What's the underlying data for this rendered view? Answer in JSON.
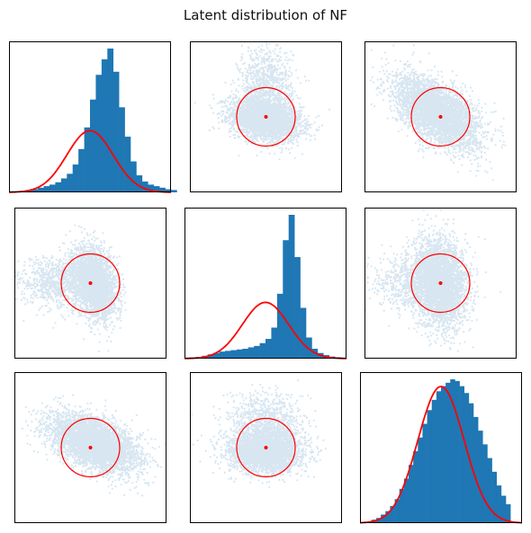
{
  "title": "Latent distribution of NF",
  "colors": {
    "hist": "#1f77b4",
    "scatter": "#1f77b4",
    "gaussian": "#ff0000",
    "frame": "#000000"
  },
  "chart_data": {
    "type": "pairplot",
    "grid": false,
    "dims": 3,
    "reference": "standard normal (mean 0, 1-sigma circle)",
    "diagonal": [
      {
        "row": 0,
        "col": 0,
        "type": "histogram",
        "bin_start": -3.5,
        "bin_width": 0.25,
        "density": [
          0.005,
          0.007,
          0.01,
          0.015,
          0.02,
          0.03,
          0.04,
          0.05,
          0.065,
          0.09,
          0.12,
          0.18,
          0.28,
          0.42,
          0.6,
          0.76,
          0.86,
          0.93,
          0.78,
          0.55,
          0.36,
          0.2,
          0.11,
          0.07,
          0.05,
          0.04,
          0.03,
          0.02,
          0.015
        ]
      },
      {
        "row": 1,
        "col": 1,
        "type": "histogram",
        "bin_start": -3.5,
        "bin_width": 0.25,
        "density": [
          0.004,
          0.008,
          0.012,
          0.02,
          0.03,
          0.04,
          0.05,
          0.055,
          0.06,
          0.065,
          0.07,
          0.08,
          0.09,
          0.11,
          0.14,
          0.22,
          0.46,
          0.84,
          1.02,
          0.72,
          0.36,
          0.15,
          0.07,
          0.04,
          0.025,
          0.015,
          0.01,
          0.006
        ]
      },
      {
        "row": 2,
        "col": 2,
        "type": "histogram",
        "bin_start": -3.0,
        "bin_width": 0.2,
        "density": [
          0.01,
          0.015,
          0.025,
          0.035,
          0.05,
          0.07,
          0.1,
          0.13,
          0.17,
          0.21,
          0.25,
          0.29,
          0.33,
          0.36,
          0.385,
          0.4,
          0.41,
          0.42,
          0.415,
          0.4,
          0.38,
          0.35,
          0.31,
          0.27,
          0.23,
          0.19,
          0.15,
          0.11,
          0.08,
          0.055
        ]
      }
    ],
    "offdiagonal": [
      {
        "row": 0,
        "col": 1,
        "n": 4200,
        "clusters": [
          {
            "w": 0.75,
            "mx": 0.0,
            "my": -0.1,
            "sx": 0.6,
            "sy": 0.35,
            "rho": -0.3
          },
          {
            "w": 0.25,
            "mx": 0.0,
            "my": 1.0,
            "sx": 0.45,
            "sy": 0.7,
            "rho": 0.0
          }
        ]
      },
      {
        "row": 0,
        "col": 2,
        "n": 4200,
        "clusters": [
          {
            "w": 1.0,
            "mx": -0.1,
            "my": 0.15,
            "sx": 0.7,
            "sy": 0.6,
            "rho": -0.55
          }
        ]
      },
      {
        "row": 1,
        "col": 0,
        "n": 4200,
        "clusters": [
          {
            "w": 0.75,
            "mx": 0.15,
            "my": 0.0,
            "sx": 0.35,
            "sy": 0.6,
            "rho": -0.3
          },
          {
            "w": 0.25,
            "mx": -1.0,
            "my": 0.0,
            "sx": 0.7,
            "sy": 0.45,
            "rho": 0.0
          }
        ]
      },
      {
        "row": 1,
        "col": 2,
        "n": 4200,
        "clusters": [
          {
            "w": 1.0,
            "mx": 0.0,
            "my": 0.0,
            "sx": 0.45,
            "sy": 0.75,
            "rho": -0.1
          },
          {
            "w": 0.25,
            "mx": -0.9,
            "my": 0.0,
            "sx": 0.7,
            "sy": 0.5,
            "rho": 0.0
          }
        ]
      },
      {
        "row": 2,
        "col": 0,
        "n": 4200,
        "clusters": [
          {
            "w": 1.0,
            "mx": 0.1,
            "my": 0.15,
            "sx": 0.75,
            "sy": 0.5,
            "rho": -0.5
          }
        ]
      },
      {
        "row": 2,
        "col": 1,
        "n": 4200,
        "clusters": [
          {
            "w": 0.78,
            "mx": 0.0,
            "my": -0.15,
            "sx": 0.6,
            "sy": 0.35,
            "rho": 0.0
          },
          {
            "w": 0.22,
            "mx": 0.0,
            "my": 0.8,
            "sx": 0.65,
            "sy": 0.5,
            "rho": 0.0
          }
        ]
      }
    ],
    "scatter_alpha": 0.18,
    "axis_range": [
      -2.6,
      2.6
    ],
    "hist_range": [
      -3.5,
      3.5
    ]
  }
}
